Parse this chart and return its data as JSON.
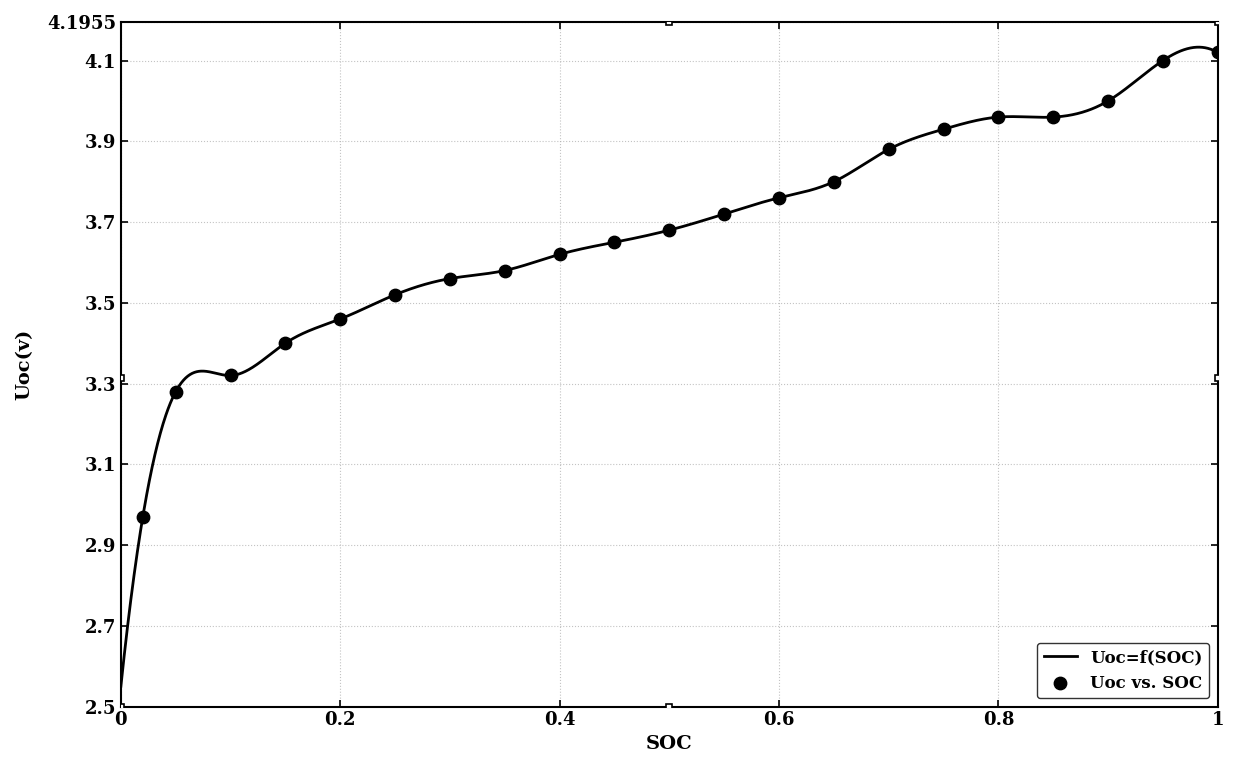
{
  "scatter_points": {
    "soc": [
      0.02,
      0.05,
      0.1,
      0.15,
      0.2,
      0.25,
      0.3,
      0.35,
      0.4,
      0.45,
      0.5,
      0.55,
      0.6,
      0.65,
      0.7,
      0.75,
      0.8,
      0.85,
      0.9,
      0.95,
      1.0
    ],
    "uoc": [
      2.97,
      3.28,
      3.32,
      3.4,
      3.46,
      3.52,
      3.56,
      3.58,
      3.62,
      3.65,
      3.68,
      3.72,
      3.76,
      3.8,
      3.88,
      3.93,
      3.96,
      3.96,
      4.0,
      4.1,
      4.12
    ]
  },
  "xlim": [
    0,
    1
  ],
  "ylim": [
    2.5,
    4.1955
  ],
  "yticks": [
    2.5,
    2.7,
    2.9,
    3.1,
    3.3,
    3.5,
    3.7,
    3.9,
    4.1,
    4.1955
  ],
  "yticklabels": [
    "2.5",
    "2.7",
    "2.9",
    "3.1",
    "3.3",
    "3.5",
    "3.7",
    "3.9",
    "4.1",
    "4.1955"
  ],
  "xticks": [
    0,
    0.2,
    0.4,
    0.6,
    0.8,
    1.0
  ],
  "xticklabels": [
    "0",
    "0.2",
    "0.4",
    "0.6",
    "0.8",
    "1"
  ],
  "xlabel": "SOC",
  "ylabel": "Uoc(v)",
  "legend_scatter": "Uoc vs. SOC",
  "legend_line": "Uoc=f(SOC)",
  "scatter_color": "black",
  "line_color": "black",
  "background_color": "white",
  "grid_color": "#aaaaaa",
  "scatter_size": 80,
  "square_markers": [
    [
      0.5,
      4.1955
    ],
    [
      1.0,
      4.1955
    ],
    [
      0.0,
      3.315
    ],
    [
      1.0,
      3.315
    ],
    [
      0.5,
      2.5
    ],
    [
      0.0,
      2.5
    ]
  ]
}
